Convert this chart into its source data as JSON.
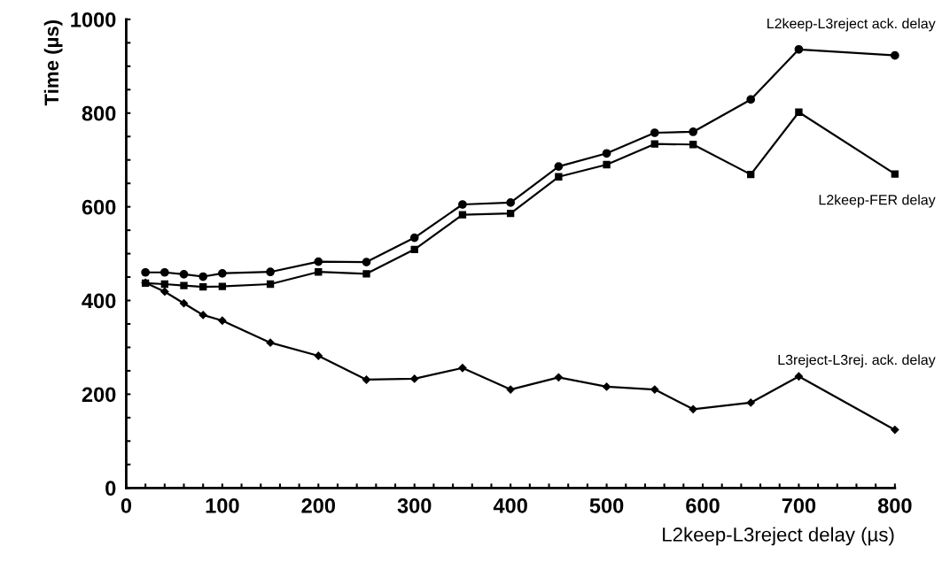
{
  "chart_data": {
    "type": "line",
    "xlabel": "L2keep-L3reject delay (µs)",
    "ylabel": "Time (µs)",
    "x": [
      20,
      40,
      60,
      80,
      100,
      150,
      200,
      250,
      300,
      350,
      400,
      450,
      500,
      550,
      590,
      650,
      700,
      800
    ],
    "series": [
      {
        "name": "L2keep-L3reject ack. delay",
        "color": "#000000",
        "marker": "circle",
        "values": [
          460,
          460,
          456,
          451,
          458,
          461,
          483,
          482,
          534,
          605,
          609,
          686,
          714,
          758,
          760,
          829,
          936,
          923
        ]
      },
      {
        "name": "L2keep-FER delay",
        "color": "#000000",
        "marker": "square",
        "values": [
          437,
          435,
          432,
          429,
          430,
          435,
          461,
          457,
          509,
          583,
          586,
          664,
          690,
          734,
          733,
          669,
          802,
          670
        ]
      },
      {
        "name": "L3reject-L3rej. ack. delay",
        "color": "#000000",
        "marker": "diamond",
        "values": [
          438,
          419,
          394,
          369,
          357,
          310,
          282,
          231,
          233,
          256,
          210,
          236,
          216,
          210,
          168,
          182,
          238,
          124
        ]
      }
    ],
    "xlim": [
      0,
      800
    ],
    "xticks": [
      0,
      {
        "value": 20,
        "label": null
      },
      {
        "value": 40,
        "label": null
      },
      {
        "value": 60,
        "label": null
      },
      {
        "value": 80,
        "label": null
      },
      100,
      {
        "value": 120,
        "label": null
      },
      {
        "value": 140,
        "label": null
      },
      {
        "value": 160,
        "label": null
      },
      {
        "value": 180,
        "label": null
      },
      200,
      {
        "value": 220,
        "label": null
      },
      {
        "value": 240,
        "label": null
      },
      {
        "value": 260,
        "label": null
      },
      {
        "value": 280,
        "label": null
      },
      300,
      {
        "value": 320,
        "label": null
      },
      {
        "value": 340,
        "label": null
      },
      {
        "value": 360,
        "label": null
      },
      {
        "value": 380,
        "label": null
      },
      400,
      {
        "value": 420,
        "label": null
      },
      {
        "value": 440,
        "label": null
      },
      {
        "value": 460,
        "label": null
      },
      {
        "value": 480,
        "label": null
      },
      500,
      {
        "value": 520,
        "label": null
      },
      {
        "value": 540,
        "label": null
      },
      {
        "value": 560,
        "label": null
      },
      {
        "value": 580,
        "label": null
      },
      600,
      {
        "value": 620,
        "label": null
      },
      {
        "value": 640,
        "label": null
      },
      {
        "value": 660,
        "label": null
      },
      {
        "value": 680,
        "label": null
      },
      700,
      {
        "value": 720,
        "label": null
      },
      {
        "value": 740,
        "label": null
      },
      {
        "value": 760,
        "label": null
      },
      {
        "value": 780,
        "label": null
      },
      800
    ],
    "ylim": [
      0,
      1000
    ],
    "yticks": [
      0,
      {
        "value": 50,
        "label": null
      },
      {
        "value": 100,
        "label": null
      },
      {
        "value": 150,
        "label": null
      },
      200,
      {
        "value": 250,
        "label": null
      },
      {
        "value": 300,
        "label": null
      },
      {
        "value": 350,
        "label": null
      },
      400,
      {
        "value": 450,
        "label": null
      },
      {
        "value": 500,
        "label": null
      },
      {
        "value": 550,
        "label": null
      },
      600,
      {
        "value": 650,
        "label": null
      },
      {
        "value": 700,
        "label": null
      },
      {
        "value": 750,
        "label": null
      },
      800,
      {
        "value": 850,
        "label": null
      },
      {
        "value": 900,
        "label": null
      },
      {
        "value": 950,
        "label": null
      },
      1000
    ],
    "grid": false,
    "legend": false,
    "line_style": "solid"
  }
}
